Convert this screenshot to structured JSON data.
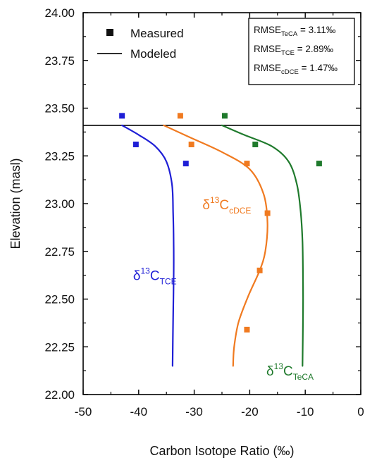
{
  "chart_data": {
    "type": "scatter",
    "xlabel": "Carbon Isotope Ratio (‰)",
    "ylabel": "Elevation (masl)",
    "xlim": [
      -50,
      0
    ],
    "ylim": [
      22.0,
      24.0
    ],
    "x_ticks": [
      "-50",
      "-40",
      "-30",
      "-20",
      "-10",
      "0"
    ],
    "y_ticks": [
      "22.00",
      "22.25",
      "22.50",
      "22.75",
      "23.00",
      "23.25",
      "23.50",
      "23.75",
      "24.00"
    ],
    "grid": false,
    "reference_line_y": 23.41,
    "legend": {
      "placement": "top-left",
      "items": [
        {
          "label": "Measured",
          "marker": "square"
        },
        {
          "label": "Modeled",
          "marker": "line"
        }
      ]
    },
    "rmse_box": {
      "placement": "top-right",
      "entries": [
        {
          "prefix": "RMSE",
          "sub": "TeCA",
          "value": "= 3.11‰"
        },
        {
          "prefix": "RMSE",
          "sub": "TCE",
          "value": "= 2.89‰"
        },
        {
          "prefix": "RMSE",
          "sub": "cDCE",
          "value": "= 1.47‰"
        }
      ]
    },
    "series": [
      {
        "key": "tce",
        "label_pre": "δ",
        "label_sup": "13",
        "label_main": "C",
        "label_sub": "TCE",
        "label_at": [
          -41,
          22.6
        ],
        "color": "#1f1fd6",
        "measured": [
          [
            -43,
            23.46
          ],
          [
            -40.5,
            23.31
          ],
          [
            -31.5,
            23.21
          ]
        ],
        "modeled": [
          [
            -43,
            23.41
          ],
          [
            -40,
            23.36
          ],
          [
            -37,
            23.3
          ],
          [
            -35,
            23.22
          ],
          [
            -34,
            23.1
          ],
          [
            -33.8,
            22.95
          ],
          [
            -33.7,
            22.8
          ],
          [
            -33.7,
            22.6
          ],
          [
            -33.8,
            22.4
          ],
          [
            -33.9,
            22.15
          ]
        ]
      },
      {
        "key": "cdce",
        "label_pre": "δ",
        "label_sup": "13",
        "label_main": "C",
        "label_sub": "cDCE",
        "label_at": [
          -28.5,
          22.97
        ],
        "color": "#f07a20",
        "measured": [
          [
            -32.5,
            23.46
          ],
          [
            -30.5,
            23.31
          ],
          [
            -20.5,
            23.21
          ],
          [
            -16.8,
            22.95
          ],
          [
            -18.2,
            22.65
          ],
          [
            -20.5,
            22.34
          ]
        ],
        "modeled": [
          [
            -35.5,
            23.41
          ],
          [
            -31,
            23.35
          ],
          [
            -25,
            23.27
          ],
          [
            -20,
            23.18
          ],
          [
            -17.5,
            23.05
          ],
          [
            -16.8,
            22.9
          ],
          [
            -17.2,
            22.75
          ],
          [
            -18.2,
            22.65
          ],
          [
            -20.2,
            22.52
          ],
          [
            -22,
            22.38
          ],
          [
            -22.8,
            22.25
          ],
          [
            -23,
            22.15
          ]
        ]
      },
      {
        "key": "teca",
        "label_pre": "δ",
        "label_sup": "13",
        "label_main": "C",
        "label_sub": "TeCA",
        "label_at": [
          -17,
          22.1
        ],
        "color": "#1f7a2c",
        "measured": [
          [
            -24.5,
            23.46
          ],
          [
            -19,
            23.31
          ],
          [
            -7.5,
            23.21
          ]
        ],
        "modeled": [
          [
            -25,
            23.41
          ],
          [
            -21,
            23.36
          ],
          [
            -16,
            23.3
          ],
          [
            -13,
            23.22
          ],
          [
            -11.5,
            23.1
          ],
          [
            -10.8,
            22.95
          ],
          [
            -10.5,
            22.8
          ],
          [
            -10.4,
            22.6
          ],
          [
            -10.4,
            22.4
          ],
          [
            -10.5,
            22.15
          ]
        ]
      }
    ]
  }
}
